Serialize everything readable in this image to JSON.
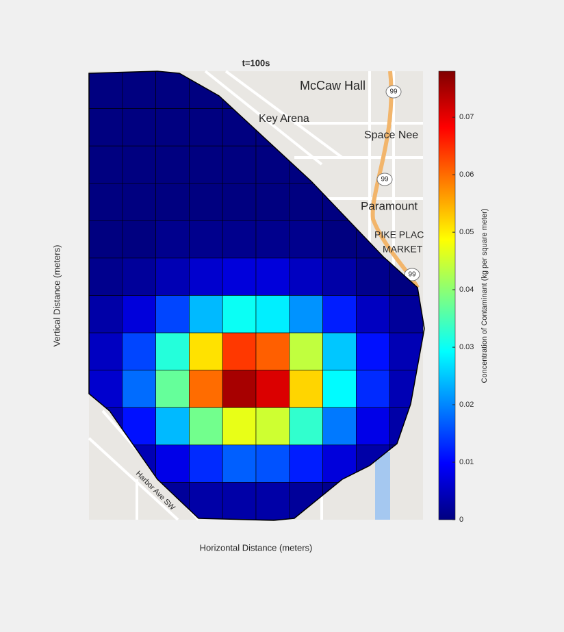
{
  "chart_data": {
    "type": "heatmap",
    "title": "t=100s",
    "x_label": "Horizontal Distance (meters)",
    "y_label": "Vertical Distance (meters)",
    "colorbar_label": "Concentration of Contaminant (kg per square meter)",
    "colormap": "jet",
    "clim": [
      0,
      0.078
    ],
    "cticks": [
      0,
      0.01,
      0.02,
      0.03,
      0.04,
      0.05,
      0.06,
      0.07
    ],
    "map_labels": [
      "McCaw Hall",
      "Key Arena",
      "Space Nee",
      "Paramount",
      "PIKE PLAC",
      "MARKET",
      "Harbor Ave SW",
      "99",
      "99",
      "99"
    ],
    "z": [
      [
        0,
        0,
        0,
        0,
        0,
        0,
        0,
        0,
        0,
        0
      ],
      [
        0,
        0,
        0,
        0,
        0,
        0,
        0,
        0,
        0,
        0
      ],
      [
        0,
        0,
        0,
        0,
        0,
        0,
        0,
        0,
        0,
        0
      ],
      [
        0,
        0,
        0,
        0,
        0,
        0,
        0,
        0,
        0,
        0
      ],
      [
        0,
        0,
        0.001,
        0.001,
        0.001,
        0.001,
        0.001,
        0,
        0,
        0
      ],
      [
        0.001,
        0.002,
        0.004,
        0.006,
        0.007,
        0.007,
        0.005,
        0.003,
        0.001,
        0
      ],
      [
        0.003,
        0.007,
        0.015,
        0.024,
        0.03,
        0.028,
        0.021,
        0.012,
        0.005,
        0.002
      ],
      [
        0.005,
        0.015,
        0.032,
        0.051,
        0.064,
        0.061,
        0.044,
        0.025,
        0.011,
        0.004
      ],
      [
        0.006,
        0.018,
        0.037,
        0.06,
        0.075,
        0.071,
        0.052,
        0.029,
        0.013,
        0.004
      ],
      [
        0.004,
        0.011,
        0.024,
        0.038,
        0.047,
        0.045,
        0.033,
        0.019,
        0.008,
        0.003
      ],
      [
        0.001,
        0.004,
        0.008,
        0.013,
        0.017,
        0.016,
        0.012,
        0.007,
        0.003,
        0.001
      ],
      [
        0,
        0.001,
        0.002,
        0.003,
        0.003,
        0.003,
        0.002,
        0.001,
        0.001,
        0
      ]
    ]
  }
}
